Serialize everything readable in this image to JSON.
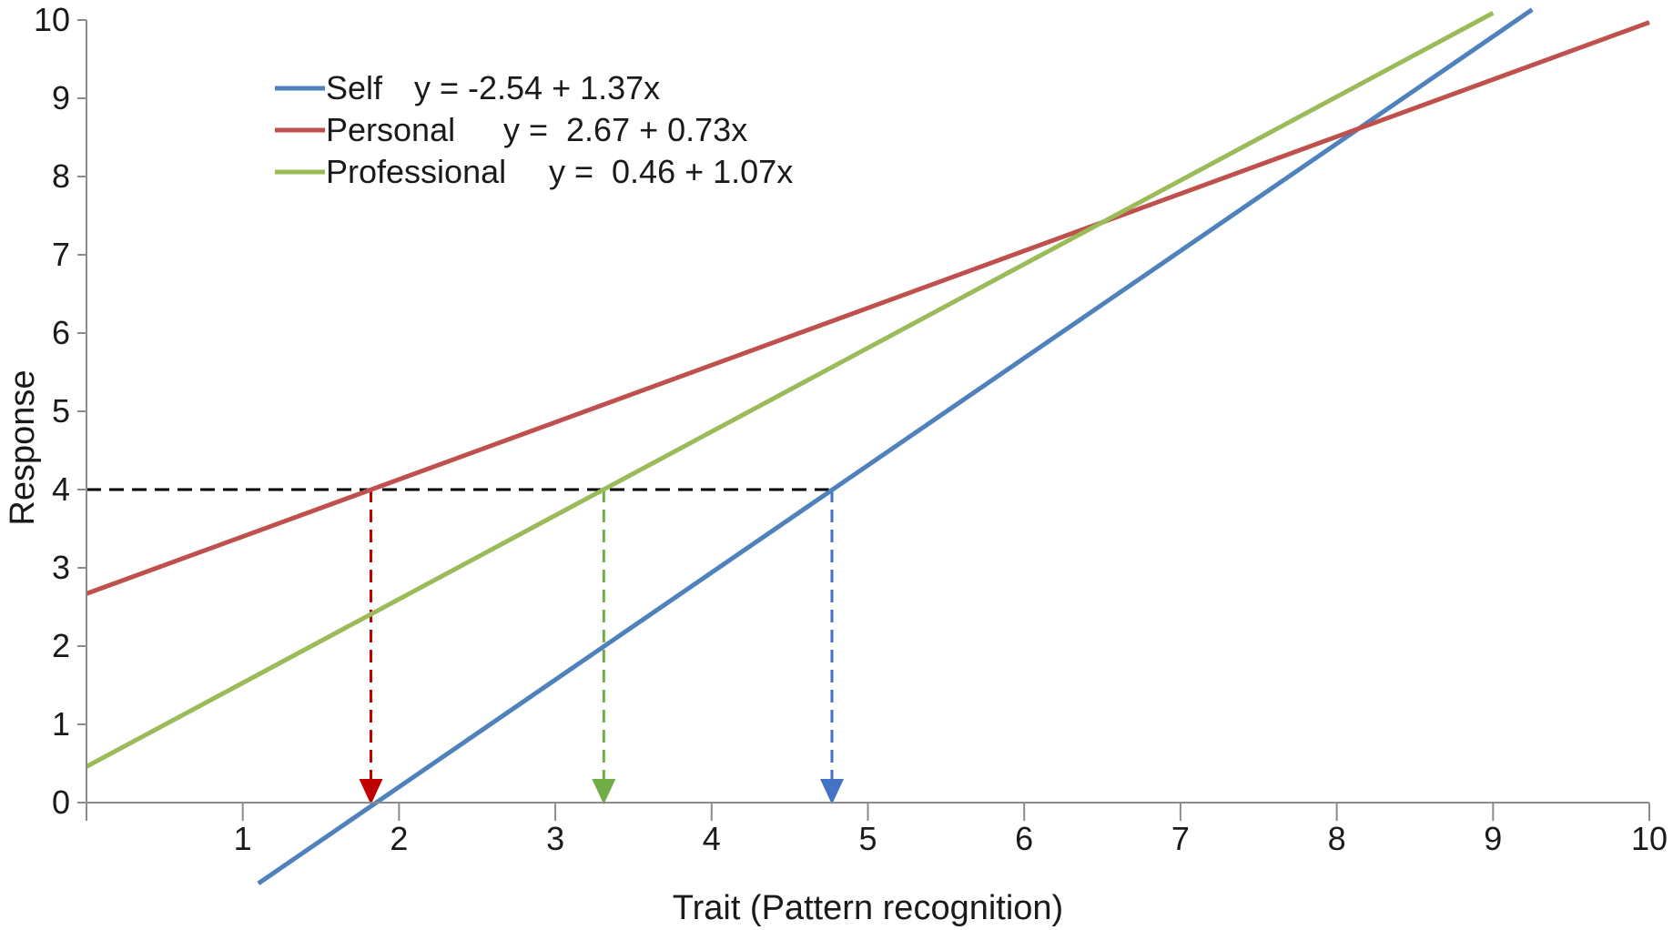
{
  "chart_data": {
    "type": "line",
    "xlabel": "Trait (Pattern recognition)",
    "ylabel": "Response",
    "xlim": [
      0,
      10
    ],
    "ylim": [
      0,
      10
    ],
    "x_ticks": [
      "1",
      "2",
      "3",
      "4",
      "5",
      "6",
      "7",
      "8",
      "9",
      "10"
    ],
    "y_ticks": [
      "0",
      "1",
      "2",
      "3",
      "4",
      "5",
      "6",
      "7",
      "8",
      "9",
      "10"
    ],
    "grid": false,
    "legend_position": "top-left",
    "series": [
      {
        "name": "Self",
        "equation": "y = -2.54 + 1.37x",
        "intercept": -2.54,
        "slope": 1.37,
        "color": "#4f81bd",
        "x_range": [
          1.1,
          9.25
        ]
      },
      {
        "name": "Personal",
        "equation": "y =  2.67 + 0.73x",
        "intercept": 2.67,
        "slope": 0.73,
        "color": "#c0504d",
        "x_range": [
          0,
          10
        ]
      },
      {
        "name": "Professional",
        "equation": "y =  0.46 + 1.07x",
        "intercept": 0.46,
        "slope": 1.07,
        "color": "#9bbb59",
        "x_range": [
          0,
          9.0
        ]
      }
    ],
    "reference_level": {
      "y": 4,
      "x_to": 4.75,
      "color": "#000000"
    },
    "drop_lines": [
      {
        "series": "Personal",
        "x": 1.82,
        "color": "#c00000"
      },
      {
        "series": "Professional",
        "x": 3.31,
        "color": "#70ad47"
      },
      {
        "series": "Self",
        "x": 4.77,
        "color": "#4472c4"
      }
    ]
  }
}
